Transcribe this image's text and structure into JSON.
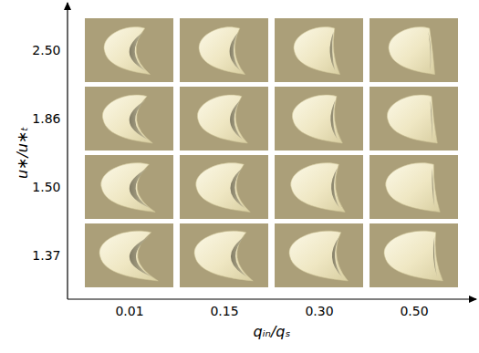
{
  "chart_data": {
    "type": "image_grid",
    "x_label": "qᵢₙ/qₛ",
    "y_label": "u∗/u∗ₜ",
    "categories": [
      "0.01",
      "0.15",
      "0.30",
      "0.50"
    ],
    "y_categories": [
      "1.37",
      "1.50",
      "1.86",
      "2.50"
    ],
    "color": "#ab9f79"
  }
}
